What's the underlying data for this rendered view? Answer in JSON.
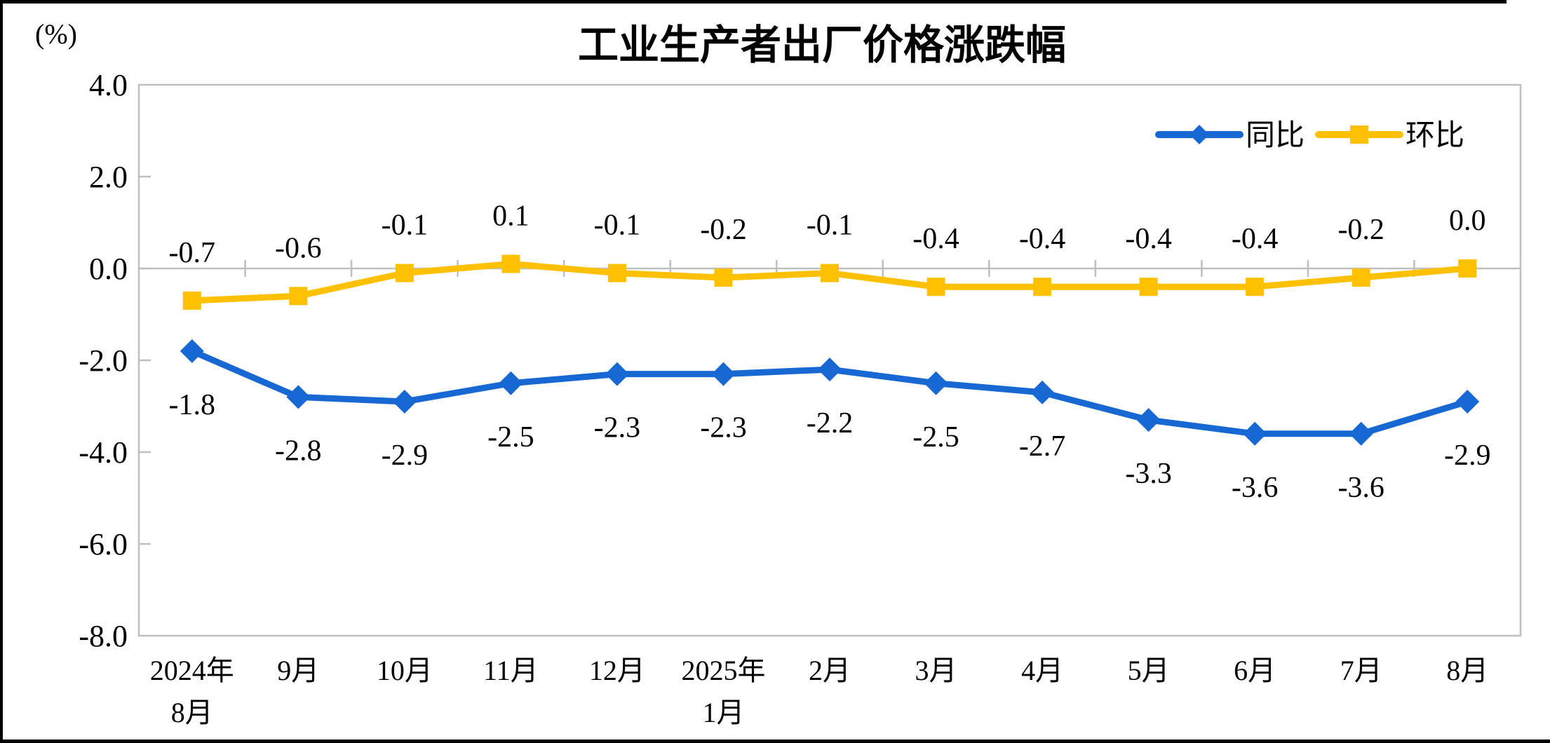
{
  "title": "工业生产者出厂价格涨跌幅",
  "y_axis": {
    "unit": "(%)",
    "max": 4.0,
    "min": -8.0,
    "step": 2.0,
    "tick_labels": [
      "4.0",
      "2.0",
      "0.0",
      "-2.0",
      "-4.0",
      "-6.0",
      "-8.0"
    ],
    "tick_values": [
      4,
      2,
      0,
      -2,
      -4,
      -6,
      -8
    ]
  },
  "x_axis": {
    "category_lines": [
      [
        "2024年",
        "8月"
      ],
      [
        "9月"
      ],
      [
        "10月"
      ],
      [
        "11月"
      ],
      [
        "12月"
      ],
      [
        "2025年",
        "1月"
      ],
      [
        "2月"
      ],
      [
        "3月"
      ],
      [
        "4月"
      ],
      [
        "5月"
      ],
      [
        "6月"
      ],
      [
        "7月"
      ],
      [
        "8月"
      ]
    ]
  },
  "legend": {
    "position": "top-right",
    "items": [
      "同比",
      "环比"
    ]
  },
  "colors": {
    "yoy_blue": "#1868D4",
    "mom_gold": "#FFC000",
    "axis_gray": "#BFBFBF",
    "frame_black": "#000000",
    "background": "#FFFFFF"
  },
  "chart_data": {
    "type": "line",
    "title": "工业生产者出厂价格涨跌幅",
    "ylabel": "(%)",
    "ylim": [
      -8.0,
      4.0
    ],
    "ytick_step": 2.0,
    "grid": false,
    "legend_position": "top-right",
    "categories": [
      "2024年8月",
      "9月",
      "10月",
      "11月",
      "12月",
      "2025年1月",
      "2月",
      "3月",
      "4月",
      "5月",
      "6月",
      "7月",
      "8月"
    ],
    "series": [
      {
        "id": "yoy",
        "name": "同比",
        "color": "#1868D4",
        "marker": "diamond",
        "label_position": "below",
        "values": [
          -1.8,
          -2.8,
          -2.9,
          -2.5,
          -2.3,
          -2.3,
          -2.2,
          -2.5,
          -2.7,
          -3.3,
          -3.6,
          -3.6,
          -2.9
        ],
        "labels": [
          "-1.8",
          "-2.8",
          "-2.9",
          "-2.5",
          "-2.3",
          "-2.3",
          "-2.2",
          "-2.5",
          "-2.7",
          "-3.3",
          "-3.6",
          "-3.6",
          "-2.9"
        ]
      },
      {
        "id": "mom",
        "name": "环比",
        "color": "#FFC000",
        "marker": "square",
        "label_position": "above",
        "values": [
          -0.7,
          -0.6,
          -0.1,
          0.1,
          -0.1,
          -0.2,
          -0.1,
          -0.4,
          -0.4,
          -0.4,
          -0.4,
          -0.2,
          0.0
        ],
        "labels": [
          "-0.7",
          "-0.6",
          "-0.1",
          "0.1",
          "-0.1",
          "-0.2",
          "-0.1",
          "-0.4",
          "-0.4",
          "-0.4",
          "-0.4",
          "-0.2",
          "0.0"
        ]
      }
    ]
  }
}
